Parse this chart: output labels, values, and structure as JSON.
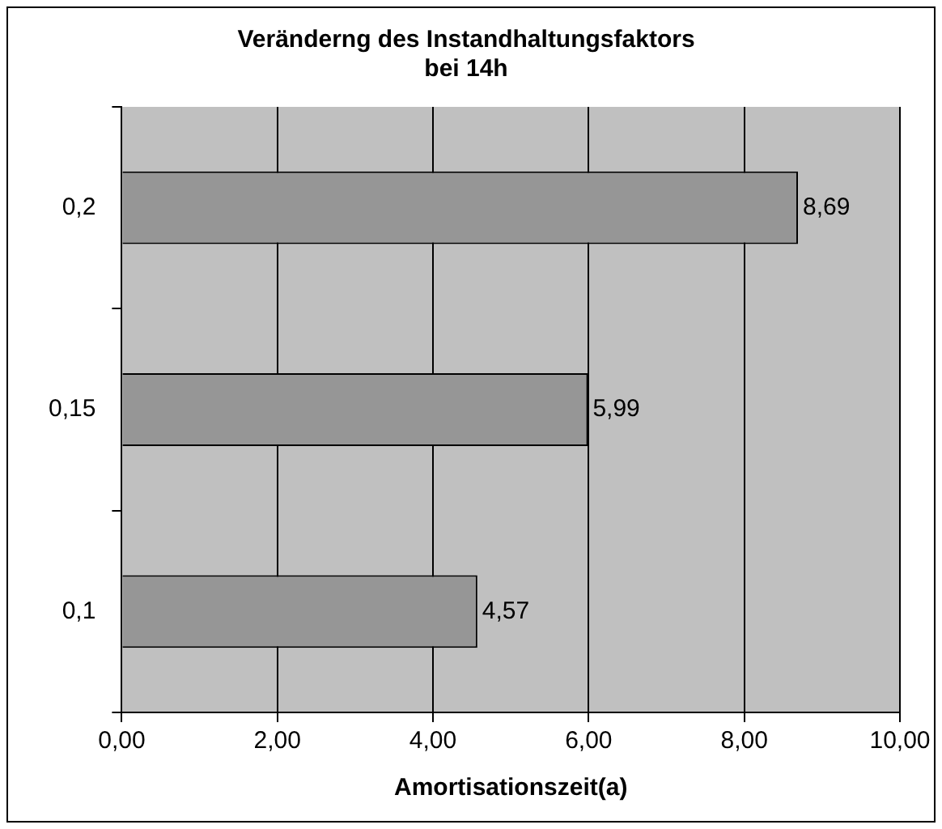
{
  "chart_data": {
    "type": "bar",
    "orientation": "horizontal",
    "title": "Veränderng des Instandhaltungsfaktors bei 14h",
    "xlabel": "Amortisationszeit(a)",
    "categories": [
      "0,2",
      "0,15",
      "0,1"
    ],
    "values": [
      8.69,
      5.99,
      4.57
    ],
    "color": "#969696",
    "value_labels": [
      "8,69",
      "5,99",
      "4,57"
    ],
    "xlim": [
      0,
      10
    ],
    "xticks": [
      {
        "value": 0,
        "label": "0,00"
      },
      {
        "value": 2,
        "label": "2,00"
      },
      {
        "value": 4,
        "label": "4,00"
      },
      {
        "value": 6,
        "label": "6,00"
      },
      {
        "value": 8,
        "label": "8,00"
      },
      {
        "value": 10,
        "label": "10,00"
      }
    ],
    "grid": "x",
    "legend": false
  }
}
